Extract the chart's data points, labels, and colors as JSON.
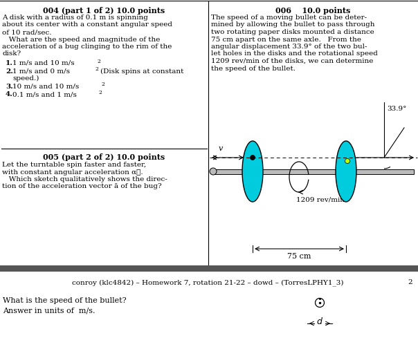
{
  "bg_color": "#ffffff",
  "left_panel": {
    "title_004": "004 (part 1 of 2) 10.0 points",
    "title_005": "005 (part 2 of 2) 10.0 points"
  },
  "right_panel": {
    "title_006": "006    10.0 points",
    "disk_color": "#00ccdd",
    "axle_color": "#bbbbbb",
    "angle_label": "33.9°",
    "speed_label": "1209 rev/min",
    "distance_label": "75 cm",
    "velocity_label": "v"
  },
  "footer_bar_color": "#555555",
  "footer_text": "conroy (klc4842) – Homework 7, rotation 21-22 – dowd – (TorresLPHY1_3)",
  "footer_page": "2",
  "bottom_question": "What is the speed of the bullet?",
  "bottom_units": "Answer in units of  m/s."
}
